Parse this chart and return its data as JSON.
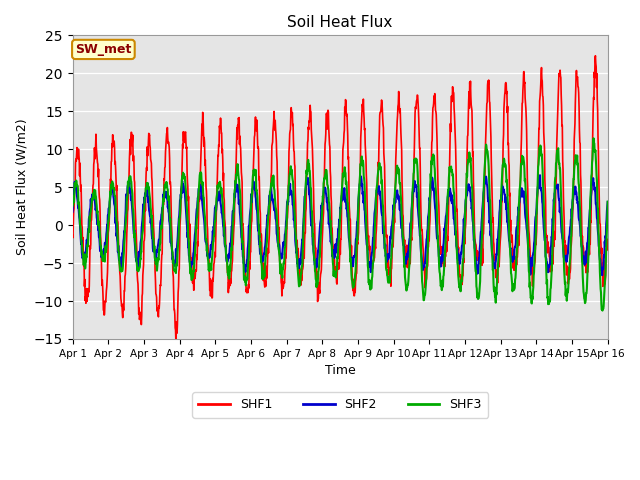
{
  "title": "Soil Heat Flux",
  "xlabel": "Time",
  "ylabel": "Soil Heat Flux (W/m2)",
  "ylim": [
    -15,
    25
  ],
  "yticks": [
    -15,
    -10,
    -5,
    0,
    5,
    10,
    15,
    20,
    25
  ],
  "bg_color": "#e5e5e5",
  "annotation_text": "SW_met",
  "annotation_bg": "#ffffcc",
  "annotation_border": "#cc8800",
  "annotation_text_color": "#8b0000",
  "series": {
    "SHF1": {
      "color": "#ff0000",
      "linewidth": 1.2
    },
    "SHF2": {
      "color": "#0000cc",
      "linewidth": 1.5
    },
    "SHF3": {
      "color": "#00aa00",
      "linewidth": 1.5
    }
  },
  "xtick_labels": [
    "Apr 1",
    "Apr 2",
    "Apr 3",
    "Apr 4",
    "Apr 5",
    "Apr 6",
    "Apr 7",
    "Apr 8",
    "Apr 9",
    "Apr 10",
    "Apr 11",
    "Apr 12",
    "Apr 13",
    "Apr 14",
    "Apr 15",
    "Apr 16"
  ],
  "num_days": 15,
  "points_per_day": 96
}
